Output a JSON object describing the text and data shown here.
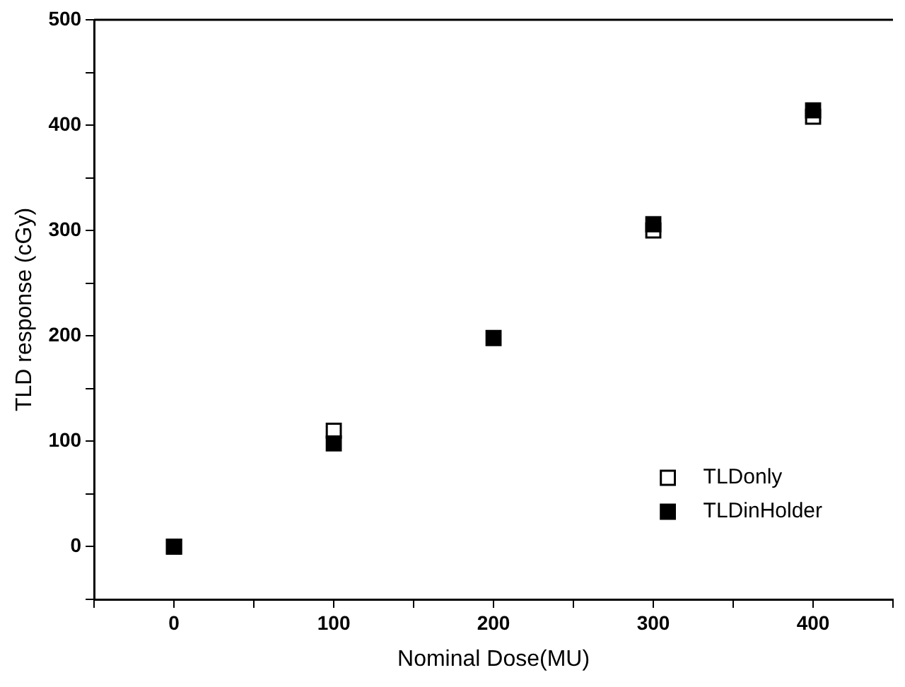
{
  "chart_data": {
    "type": "scatter",
    "xlabel": "Nominal Dose(MU)",
    "ylabel": "TLD response (cGy)",
    "xlim": [
      -50,
      450
    ],
    "ylim": [
      -50,
      500
    ],
    "xticks": [
      {
        "value": -50,
        "label": null
      },
      0,
      {
        "value": 50,
        "label": null
      },
      100,
      {
        "value": 150,
        "label": null
      },
      200,
      {
        "value": 250,
        "label": null
      },
      300,
      {
        "value": 350,
        "label": null
      },
      400,
      {
        "value": 450,
        "label": null
      }
    ],
    "yticks": [
      {
        "value": -50,
        "label": null
      },
      0,
      {
        "value": 50,
        "label": null
      },
      100,
      {
        "value": 150,
        "label": null
      },
      200,
      {
        "value": 250,
        "label": null
      },
      300,
      {
        "value": 350,
        "label": null
      },
      400,
      {
        "value": 450,
        "label": null
      },
      500
    ],
    "x": [
      0,
      100,
      200,
      300,
      400
    ],
    "series": [
      {
        "name": "TLDonly",
        "color": "#000000",
        "marker": "square_open",
        "values": [
          0,
          110,
          null,
          300,
          408
        ]
      },
      {
        "name": "TLDinHolder",
        "color": "#000000",
        "marker": "square",
        "values": [
          0,
          98,
          198,
          306,
          414
        ]
      }
    ],
    "legend": "bottom right",
    "grid": false
  }
}
